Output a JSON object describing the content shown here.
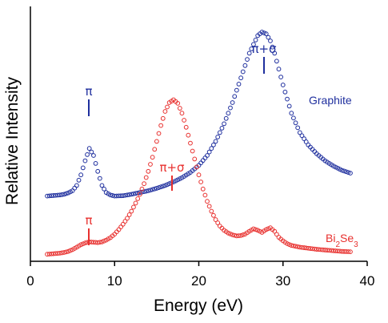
{
  "chart_data": {
    "type": "scatter",
    "xlabel": "Energy (eV)",
    "ylabel": "Relative Intensity",
    "xlim": [
      0,
      40
    ],
    "x_ticks": [
      "0",
      "10",
      "20",
      "30",
      "40"
    ],
    "y_ticks_shown": false,
    "grid": false,
    "legend": "none (series labeled directly on plot)",
    "series": [
      {
        "name": "Graphite",
        "color": "#1f2f9e",
        "marker": "open-circle",
        "points": [
          [
            2.0,
            0.185
          ],
          [
            2.5,
            0.186
          ],
          [
            3.0,
            0.187
          ],
          [
            3.5,
            0.188
          ],
          [
            4.0,
            0.19
          ],
          [
            4.5,
            0.194
          ],
          [
            5.0,
            0.2
          ],
          [
            5.5,
            0.215
          ],
          [
            6.0,
            0.245
          ],
          [
            6.5,
            0.285
          ],
          [
            7.0,
            0.32
          ],
          [
            7.5,
            0.3
          ],
          [
            8.0,
            0.255
          ],
          [
            8.5,
            0.215
          ],
          [
            9.0,
            0.195
          ],
          [
            9.5,
            0.188
          ],
          [
            10.0,
            0.185
          ],
          [
            11.0,
            0.186
          ],
          [
            12.0,
            0.19
          ],
          [
            13.0,
            0.195
          ],
          [
            14.0,
            0.2
          ],
          [
            15.0,
            0.207
          ],
          [
            16.0,
            0.215
          ],
          [
            17.0,
            0.225
          ],
          [
            18.0,
            0.237
          ],
          [
            19.0,
            0.252
          ],
          [
            20.0,
            0.272
          ],
          [
            21.0,
            0.3
          ],
          [
            22.0,
            0.34
          ],
          [
            23.0,
            0.39
          ],
          [
            24.0,
            0.45
          ],
          [
            25.0,
            0.52
          ],
          [
            26.0,
            0.59
          ],
          [
            27.0,
            0.64
          ],
          [
            27.5,
            0.65
          ],
          [
            28.0,
            0.645
          ],
          [
            28.5,
            0.625
          ],
          [
            29.0,
            0.59
          ],
          [
            29.5,
            0.545
          ],
          [
            30.0,
            0.5
          ],
          [
            31.0,
            0.42
          ],
          [
            32.0,
            0.365
          ],
          [
            33.0,
            0.33
          ],
          [
            34.0,
            0.305
          ],
          [
            35.0,
            0.285
          ],
          [
            36.0,
            0.27
          ],
          [
            37.0,
            0.258
          ],
          [
            38.0,
            0.25
          ]
        ]
      },
      {
        "name": "Bi2Se3",
        "color": "#e8312f",
        "marker": "open-circle",
        "points": [
          [
            2.0,
            0.02
          ],
          [
            2.5,
            0.021
          ],
          [
            3.0,
            0.022
          ],
          [
            3.5,
            0.023
          ],
          [
            4.0,
            0.025
          ],
          [
            4.5,
            0.028
          ],
          [
            5.0,
            0.033
          ],
          [
            5.5,
            0.04
          ],
          [
            6.0,
            0.047
          ],
          [
            6.5,
            0.052
          ],
          [
            7.0,
            0.055
          ],
          [
            7.5,
            0.054
          ],
          [
            8.0,
            0.053
          ],
          [
            8.5,
            0.055
          ],
          [
            9.0,
            0.06
          ],
          [
            9.5,
            0.067
          ],
          [
            10.0,
            0.077
          ],
          [
            10.5,
            0.09
          ],
          [
            11.0,
            0.105
          ],
          [
            11.5,
            0.122
          ],
          [
            12.0,
            0.142
          ],
          [
            12.5,
            0.165
          ],
          [
            13.0,
            0.19
          ],
          [
            13.5,
            0.22
          ],
          [
            14.0,
            0.255
          ],
          [
            14.5,
            0.295
          ],
          [
            15.0,
            0.34
          ],
          [
            15.5,
            0.385
          ],
          [
            16.0,
            0.425
          ],
          [
            16.5,
            0.45
          ],
          [
            17.0,
            0.458
          ],
          [
            17.5,
            0.448
          ],
          [
            18.0,
            0.42
          ],
          [
            18.5,
            0.38
          ],
          [
            19.0,
            0.335
          ],
          [
            19.5,
            0.29
          ],
          [
            20.0,
            0.245
          ],
          [
            20.5,
            0.205
          ],
          [
            21.0,
            0.17
          ],
          [
            21.5,
            0.142
          ],
          [
            22.0,
            0.118
          ],
          [
            22.5,
            0.1
          ],
          [
            23.0,
            0.088
          ],
          [
            23.5,
            0.08
          ],
          [
            24.0,
            0.075
          ],
          [
            24.5,
            0.072
          ],
          [
            25.0,
            0.073
          ],
          [
            25.5,
            0.077
          ],
          [
            26.0,
            0.085
          ],
          [
            26.5,
            0.092
          ],
          [
            27.0,
            0.088
          ],
          [
            27.5,
            0.082
          ],
          [
            28.0,
            0.09
          ],
          [
            28.5,
            0.095
          ],
          [
            29.0,
            0.085
          ],
          [
            29.5,
            0.068
          ],
          [
            30.0,
            0.058
          ],
          [
            30.5,
            0.05
          ],
          [
            31.0,
            0.045
          ],
          [
            32.0,
            0.04
          ],
          [
            33.0,
            0.037
          ],
          [
            34.0,
            0.034
          ],
          [
            35.0,
            0.032
          ],
          [
            36.0,
            0.03
          ],
          [
            37.0,
            0.028
          ],
          [
            38.0,
            0.027
          ]
        ]
      }
    ],
    "annotations": [
      {
        "text": "π",
        "series": "Graphite",
        "x": 7.0,
        "color": "#1f2f9e"
      },
      {
        "text": "π+σ",
        "series": "Graphite",
        "x": 27.6,
        "color": "#1f2f9e"
      },
      {
        "text": "Graphite",
        "series": "Graphite",
        "x": 35.0,
        "color": "#1f2f9e"
      },
      {
        "text": "π",
        "series": "Bi2Se3",
        "x": 7.0,
        "color": "#e8312f"
      },
      {
        "text": "π+σ",
        "series": "Bi2Se3",
        "x": 17.0,
        "color": "#e8312f"
      }
    ]
  }
}
